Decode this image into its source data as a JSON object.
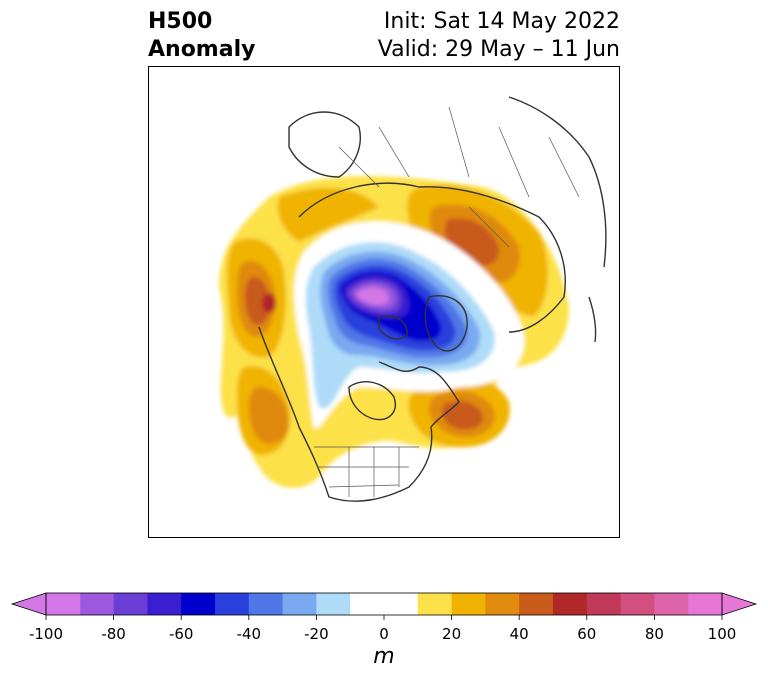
{
  "title": {
    "left_line1": "H500",
    "left_line2": "Anomaly",
    "right_line1": "Init: Sat 14 May 2022",
    "right_line2": "Valid: 29 May – 11 Jun"
  },
  "colorbar": {
    "units": "m",
    "tick_labels": [
      "-100",
      "-80",
      "-60",
      "-40",
      "-20",
      "0",
      "20",
      "40",
      "60",
      "80",
      "100"
    ],
    "tick_values": [
      -100,
      -80,
      -60,
      -40,
      -20,
      0,
      20,
      40,
      60,
      80,
      100
    ],
    "bins": [
      {
        "min": -100,
        "max": -90,
        "color": "#d277e5"
      },
      {
        "min": -90,
        "max": -80,
        "color": "#9d58e0"
      },
      {
        "min": -80,
        "max": -70,
        "color": "#6b3fd6"
      },
      {
        "min": -70,
        "max": -60,
        "color": "#3a1fd1"
      },
      {
        "min": -60,
        "max": -50,
        "color": "#0000cc"
      },
      {
        "min": -50,
        "max": -40,
        "color": "#2a40dd"
      },
      {
        "min": -40,
        "max": -30,
        "color": "#4f77e6"
      },
      {
        "min": -30,
        "max": -20,
        "color": "#79a9f0"
      },
      {
        "min": -20,
        "max": -10,
        "color": "#aedbf8"
      },
      {
        "min": -10,
        "max": 10,
        "color": "#ffffff"
      },
      {
        "min": 10,
        "max": 20,
        "color": "#fde14a"
      },
      {
        "min": 20,
        "max": 30,
        "color": "#f0b400"
      },
      {
        "min": 30,
        "max": 40,
        "color": "#e08a0e"
      },
      {
        "min": 40,
        "max": 50,
        "color": "#c85a1a"
      },
      {
        "min": 50,
        "max": 60,
        "color": "#b02828"
      },
      {
        "min": 60,
        "max": 70,
        "color": "#c03a58"
      },
      {
        "min": 70,
        "max": 80,
        "color": "#d25080"
      },
      {
        "min": 80,
        "max": 90,
        "color": "#de64aa"
      },
      {
        "min": 90,
        "max": 100,
        "color": "#e677d6"
      }
    ],
    "extend": "both"
  },
  "map": {
    "projection": "north polar stereographic",
    "variable": "500 hPa geopotential height anomaly",
    "features": [
      {
        "name": "polar-vortex-low",
        "region": "Arctic / northern Canada archipelago",
        "peak_value": -100
      },
      {
        "name": "gulf-of-alaska-ridge",
        "region": "Gulf of Alaska",
        "peak_value": 60
      },
      {
        "name": "west-coast-ridge",
        "region": "off US/Canada west coast",
        "peak_value": 40
      },
      {
        "name": "labrador-atlantic-ridge",
        "region": "eastern Canada / NW Atlantic",
        "peak_value": 50
      },
      {
        "name": "siberia-ridge",
        "region": "north-central Siberia",
        "peak_value": 50
      }
    ]
  }
}
